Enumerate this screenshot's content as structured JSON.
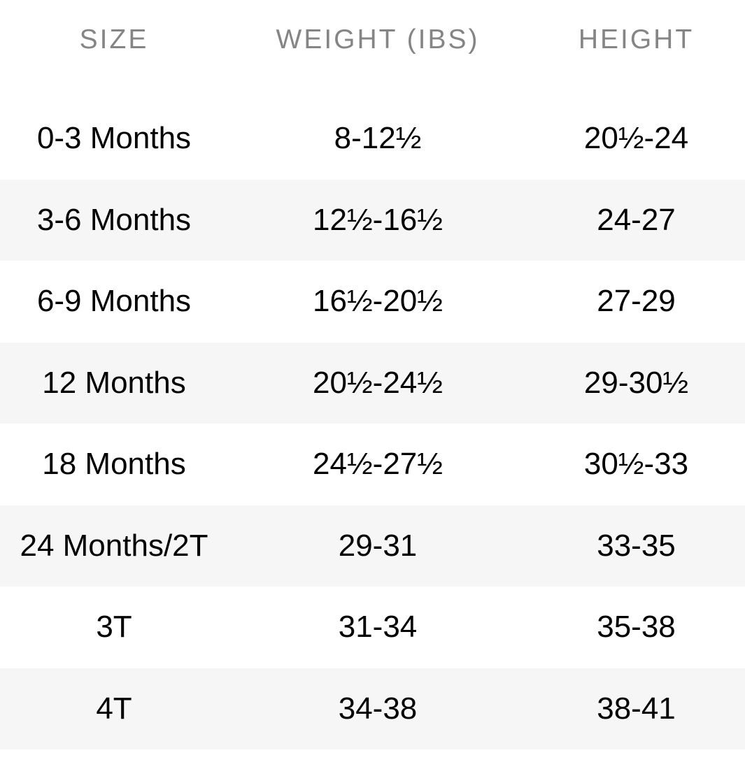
{
  "headers": {
    "size": "SIZE",
    "weight": "WEIGHT (IBS)",
    "height": "HEIGHT"
  },
  "rows": [
    {
      "size": "0-3 Months",
      "weight": "8-12½",
      "height": "20½-24"
    },
    {
      "size": "3-6 Months",
      "weight": "12½-16½",
      "height": "24-27"
    },
    {
      "size": "6-9 Months",
      "weight": "16½-20½",
      "height": "27-29"
    },
    {
      "size": "12 Months",
      "weight": "20½-24½",
      "height": "29-30½"
    },
    {
      "size": "18 Months",
      "weight": "24½-27½",
      "height": "30½-33"
    },
    {
      "size": "24 Months/2T",
      "weight": "29-31",
      "height": "33-35"
    },
    {
      "size": "3T",
      "weight": "31-34",
      "height": "35-38"
    },
    {
      "size": "4T",
      "weight": "34-38",
      "height": "38-41"
    }
  ],
  "colors": {
    "header_text": "#858585",
    "stripe": "#f6f6f6",
    "body_text": "#000000"
  }
}
